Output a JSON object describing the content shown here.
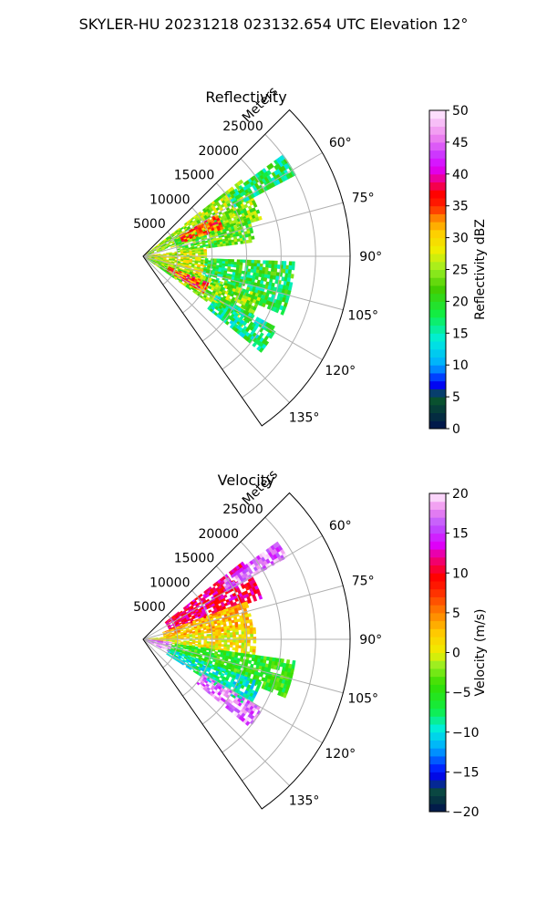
{
  "figure_title": "SKYLER-HU  20231218  023132.654 UTC Elevation 12°",
  "colors": {
    "axis": "#000000",
    "grid": "#b0b0b0",
    "background": "#ffffff"
  },
  "chart_data": [
    {
      "type": "heatmap",
      "subtype": "polar-sector radar PPI",
      "title": "Reflectivity",
      "range_label": "Meters",
      "range_ticks": [
        5000,
        10000,
        15000,
        20000,
        25000
      ],
      "range_tick_labels": [
        "5000",
        "10000",
        "15000",
        "20000",
        "25000"
      ],
      "azimuth_ticks": [
        60,
        75,
        90,
        105,
        120,
        135
      ],
      "azimuth_tick_labels": [
        "60°",
        "75°",
        "90°",
        "105°",
        "120°",
        "135°"
      ],
      "azimuth_range_deg": [
        45,
        145
      ],
      "range_max_m": 30000,
      "colorbar": {
        "label": "Reflectivity dBZ",
        "min": 0,
        "max": 50,
        "ticks": [
          0,
          5,
          10,
          15,
          20,
          25,
          30,
          35,
          40,
          45,
          50
        ],
        "tick_labels": [
          "0",
          "5",
          "10",
          "15",
          "20",
          "25",
          "30",
          "35",
          "40",
          "45",
          "50"
        ],
        "stops": [
          [
            0,
            "#00104e"
          ],
          [
            0.1,
            "#0a5a2a"
          ],
          [
            0.14,
            "#0000ff"
          ],
          [
            0.2,
            "#00aaff"
          ],
          [
            0.28,
            "#00eedd"
          ],
          [
            0.36,
            "#11ee44"
          ],
          [
            0.44,
            "#44cc00"
          ],
          [
            0.5,
            "#99ee22"
          ],
          [
            0.56,
            "#eeee00"
          ],
          [
            0.62,
            "#ffcc00"
          ],
          [
            0.66,
            "#ff8800"
          ],
          [
            0.7,
            "#ff2200"
          ],
          [
            0.74,
            "#ff0000"
          ],
          [
            0.78,
            "#ee0088"
          ],
          [
            0.82,
            "#dd00ff"
          ],
          [
            0.86,
            "#cc33ff"
          ],
          [
            0.92,
            "#ee88ee"
          ],
          [
            1,
            "#ffeeff"
          ]
        ]
      },
      "echo_regions": [
        {
          "az": [
            52,
            72
          ],
          "r_m": [
            0,
            18000
          ],
          "dbz": 25
        },
        {
          "az": [
            54,
            62
          ],
          "r_m": [
            15000,
            25000
          ],
          "dbz": 18
        },
        {
          "az": [
            62,
            82
          ],
          "r_m": [
            5000,
            16000
          ],
          "dbz": 22
        },
        {
          "az": [
            82,
            108
          ],
          "r_m": [
            0,
            9000
          ],
          "dbz": 27
        },
        {
          "az": [
            92,
            112
          ],
          "r_m": [
            9000,
            22000
          ],
          "dbz": 19
        },
        {
          "az": [
            108,
            125
          ],
          "r_m": [
            0,
            18000
          ],
          "dbz": 24
        },
        {
          "az": [
            118,
            128
          ],
          "r_m": [
            12000,
            22000
          ],
          "dbz": 17
        },
        {
          "az": [
            60,
            70
          ],
          "r_m": [
            6000,
            12000
          ],
          "dbz": 34
        },
        {
          "az": [
            112,
            120
          ],
          "r_m": [
            4000,
            10000
          ],
          "dbz": 35
        }
      ]
    },
    {
      "type": "heatmap",
      "subtype": "polar-sector radar PPI",
      "title": "Velocity",
      "range_label": "Meters",
      "range_ticks": [
        5000,
        10000,
        15000,
        20000,
        25000
      ],
      "range_tick_labels": [
        "5000",
        "10000",
        "15000",
        "20000",
        "25000"
      ],
      "azimuth_ticks": [
        60,
        75,
        90,
        105,
        120,
        135
      ],
      "azimuth_tick_labels": [
        "60°",
        "75°",
        "90°",
        "105°",
        "120°",
        "135°"
      ],
      "azimuth_range_deg": [
        45,
        145
      ],
      "range_max_m": 30000,
      "colorbar": {
        "label": "Velocity (m/s)",
        "min": -20,
        "max": 20,
        "ticks": [
          -20,
          -15,
          -10,
          -5,
          0,
          5,
          10,
          15,
          20
        ],
        "tick_labels": [
          "−20",
          "−15",
          "−10",
          "−5",
          "0",
          "5",
          "10",
          "15",
          "20"
        ],
        "stops": [
          [
            0,
            "#00104e"
          ],
          [
            0.06,
            "#0a4a3a"
          ],
          [
            0.12,
            "#0000ff"
          ],
          [
            0.2,
            "#00aaff"
          ],
          [
            0.26,
            "#00eedd"
          ],
          [
            0.32,
            "#11ee44"
          ],
          [
            0.4,
            "#33dd00"
          ],
          [
            0.46,
            "#99ee22"
          ],
          [
            0.5,
            "#eeee00"
          ],
          [
            0.56,
            "#ffcc00"
          ],
          [
            0.62,
            "#ff8800"
          ],
          [
            0.7,
            "#ff2200"
          ],
          [
            0.74,
            "#ff0000"
          ],
          [
            0.8,
            "#ee0088"
          ],
          [
            0.84,
            "#dd00ff"
          ],
          [
            0.9,
            "#bb55ff"
          ],
          [
            0.95,
            "#ee88ee"
          ],
          [
            1,
            "#ffeeff"
          ]
        ]
      },
      "echo_regions": [
        {
          "az": [
            52,
            70
          ],
          "r_m": [
            4000,
            18000
          ],
          "vel": 11
        },
        {
          "az": [
            54,
            60
          ],
          "r_m": [
            14000,
            24000
          ],
          "vel": 17
        },
        {
          "az": [
            70,
            84
          ],
          "r_m": [
            3000,
            16000
          ],
          "vel": 3
        },
        {
          "az": [
            84,
            98
          ],
          "r_m": [
            0,
            16000
          ],
          "vel": 1
        },
        {
          "az": [
            98,
            112
          ],
          "r_m": [
            3000,
            22000
          ],
          "vel": -5
        },
        {
          "az": [
            110,
            122
          ],
          "r_m": [
            4000,
            18000
          ],
          "vel": -9
        },
        {
          "az": [
            120,
            128
          ],
          "r_m": [
            10000,
            20000
          ],
          "vel": 17
        },
        {
          "az": [
            95,
            115
          ],
          "r_m": [
            0,
            4000
          ],
          "vel": 18
        }
      ]
    }
  ]
}
